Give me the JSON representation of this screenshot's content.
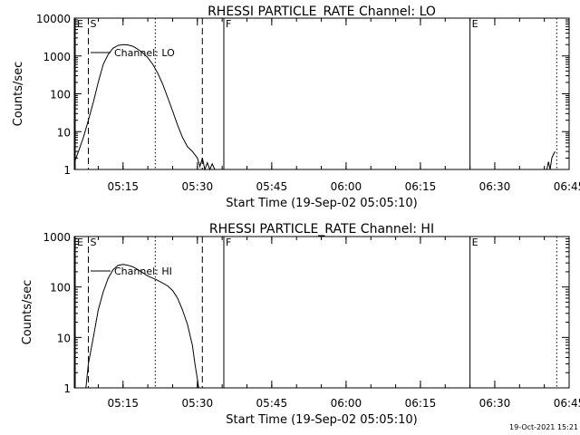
{
  "chart_data": [
    {
      "type": "line",
      "title": "RHESSI PARTICLE_RATE Channel: LO",
      "xlabel": "Start Time (19-Sep-02 05:05:10)",
      "ylabel": "Counts/sec",
      "yscale": "log",
      "x_range": [
        "05:05:10",
        "06:45:00"
      ],
      "ylim": [
        1,
        10000
      ],
      "y_ticks": [
        1,
        10,
        100,
        1000,
        10000
      ],
      "y_tick_labels": [
        "1",
        "10",
        "100",
        "1000",
        "10000"
      ],
      "x_ticks": [
        "05:15",
        "05:30",
        "05:45",
        "06:00",
        "06:15",
        "06:30",
        "06:45"
      ],
      "grid": false,
      "legend_position": "top-left",
      "series": [
        {
          "name": "Channel: LO",
          "x": [
            "05:05:10",
            "05:06:00",
            "05:07:00",
            "05:08:00",
            "05:09:00",
            "05:10:00",
            "05:11:00",
            "05:12:00",
            "05:13:00",
            "05:14:00",
            "05:15:00",
            "05:16:00",
            "05:17:00",
            "05:18:00",
            "05:19:00",
            "05:20:00",
            "05:21:00",
            "05:22:00",
            "05:23:00",
            "05:24:00",
            "05:25:00",
            "05:26:00",
            "05:27:00",
            "05:28:00",
            "05:29:00",
            "05:30:00",
            "05:30:30",
            "05:31:00",
            "05:31:30",
            "05:32:00",
            "05:32:30",
            "05:33:00",
            "05:33:30"
          ],
          "y": [
            1.5,
            3,
            7,
            20,
            60,
            200,
            600,
            1100,
            1600,
            1900,
            2000,
            1950,
            1800,
            1500,
            1200,
            900,
            600,
            350,
            180,
            80,
            35,
            15,
            7,
            4,
            3,
            2,
            1.2,
            2,
            1,
            1.5,
            1,
            1.4,
            1
          ]
        },
        {
          "name": "",
          "x": [
            "06:40:30",
            "06:40:50",
            "06:41:10",
            "06:41:30",
            "06:41:50",
            "06:42:10"
          ],
          "y": [
            1,
            1.6,
            1,
            2,
            2.5,
            3
          ]
        }
      ],
      "markers": [
        {
          "label": "E",
          "time": "05:05:10",
          "style": "solid"
        },
        {
          "label": "S",
          "time": "05:08:00",
          "style": "dashed"
        },
        {
          "label": "",
          "time": "05:21:30",
          "style": "dotted"
        },
        {
          "label": "",
          "time": "05:31:00",
          "style": "dashed"
        },
        {
          "label": "F",
          "time": "05:35:20",
          "style": "solid"
        },
        {
          "label": "E",
          "time": "06:25:00",
          "style": "solid"
        },
        {
          "label": "",
          "time": "06:42:30",
          "style": "dotted"
        }
      ]
    },
    {
      "type": "line",
      "title": "RHESSI PARTICLE_RATE Channel: HI",
      "xlabel": "Start Time (19-Sep-02 05:05:10)",
      "ylabel": "Counts/sec",
      "yscale": "log",
      "x_range": [
        "05:05:10",
        "06:45:00"
      ],
      "ylim": [
        1,
        1000
      ],
      "y_ticks": [
        1,
        10,
        100,
        1000
      ],
      "y_tick_labels": [
        "1",
        "10",
        "100",
        "1000"
      ],
      "x_ticks": [
        "05:15",
        "05:30",
        "05:45",
        "06:00",
        "06:15",
        "06:30",
        "06:45"
      ],
      "grid": false,
      "legend_position": "top-left",
      "series": [
        {
          "name": "Channel: HI",
          "x": [
            "05:07:30",
            "05:08:00",
            "05:09:00",
            "05:10:00",
            "05:11:00",
            "05:12:00",
            "05:13:00",
            "05:14:00",
            "05:15:00",
            "05:16:00",
            "05:17:00",
            "05:18:00",
            "05:19:00",
            "05:20:00",
            "05:21:00",
            "05:22:00",
            "05:23:00",
            "05:24:00",
            "05:25:00",
            "05:26:00",
            "05:27:00",
            "05:28:00",
            "05:29:00",
            "05:29:30",
            "05:30:00",
            "05:30:15"
          ],
          "y": [
            1,
            3,
            10,
            35,
            80,
            150,
            220,
            270,
            280,
            270,
            250,
            220,
            190,
            165,
            150,
            135,
            120,
            105,
            85,
            60,
            35,
            18,
            7,
            3,
            1.5,
            1
          ]
        }
      ],
      "markers": [
        {
          "label": "E",
          "time": "05:05:10",
          "style": "solid"
        },
        {
          "label": "S",
          "time": "05:08:00",
          "style": "dashed"
        },
        {
          "label": "",
          "time": "05:21:30",
          "style": "dotted"
        },
        {
          "label": "",
          "time": "05:31:00",
          "style": "dashed"
        },
        {
          "label": "F",
          "time": "05:35:20",
          "style": "solid"
        },
        {
          "label": "E",
          "time": "06:25:00",
          "style": "solid"
        },
        {
          "label": "",
          "time": "06:42:30",
          "style": "dotted"
        }
      ]
    }
  ],
  "footer": {
    "timestamp": "19-Oct-2021 15:21"
  }
}
